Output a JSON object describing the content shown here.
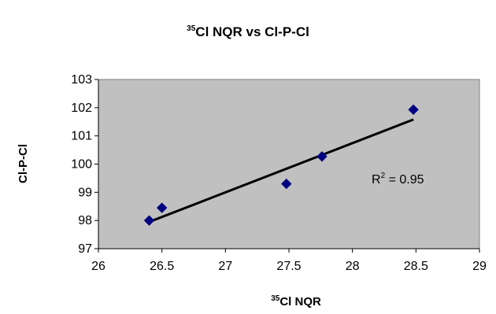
{
  "chart_data": {
    "type": "scatter",
    "title": {
      "sup": "35",
      "text": "Cl NQR vs Cl-P-Cl"
    },
    "xlabel": {
      "sup": "35",
      "text": "Cl NQR"
    },
    "ylabel": "Cl-P-Cl",
    "xlim": [
      26,
      29
    ],
    "ylim": [
      97,
      103
    ],
    "x_ticks": [
      "26",
      "26.5",
      "27",
      "27.5",
      "28",
      "28.5",
      "29"
    ],
    "y_ticks": [
      "97",
      "98",
      "99",
      "100",
      "101",
      "102",
      "103"
    ],
    "points": [
      {
        "x": 26.4,
        "y": 98.0
      },
      {
        "x": 26.5,
        "y": 98.45
      },
      {
        "x": 27.48,
        "y": 99.3
      },
      {
        "x": 27.76,
        "y": 100.27
      },
      {
        "x": 28.48,
        "y": 101.93
      }
    ],
    "trendline": {
      "from": {
        "x": 26.4,
        "y": 97.95
      },
      "to": {
        "x": 28.48,
        "y": 101.58
      }
    },
    "annotation": {
      "r2_label": "R",
      "r2_sup": "2",
      "r2_value": " = 0.95"
    },
    "grid": false,
    "legend": "none",
    "colors": {
      "plot_background": "#c0c0c0",
      "marker": "#000080",
      "trendline": "#000000"
    },
    "marker_shape": "diamond"
  }
}
